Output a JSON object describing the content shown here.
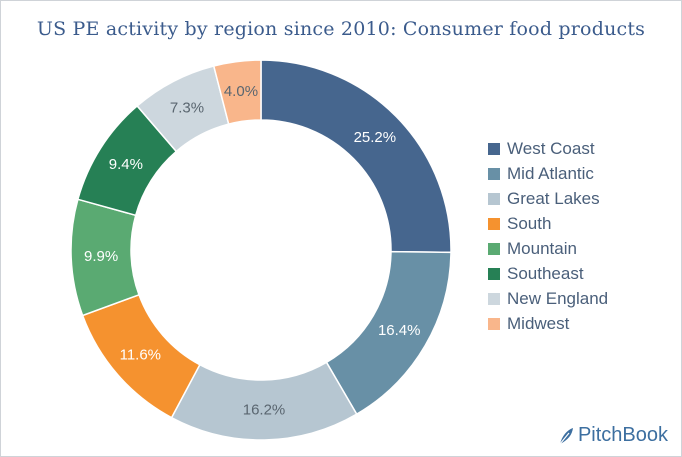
{
  "chart_data": {
    "type": "pie",
    "donut": true,
    "title": "US PE activity by region since 2010: Consumer food products",
    "legend_placement": "right",
    "slices": [
      {
        "label": "West Coast",
        "value": 25.2,
        "display": "25.2%",
        "color": "#46668e"
      },
      {
        "label": "Mid Atlantic",
        "value": 16.4,
        "display": "16.4%",
        "color": "#6890a6"
      },
      {
        "label": "Great Lakes",
        "value": 16.2,
        "display": "16.2%",
        "color": "#b6c6d1"
      },
      {
        "label": "South",
        "value": 11.6,
        "display": "11.6%",
        "color": "#f5922f"
      },
      {
        "label": "Mountain",
        "value": 9.9,
        "display": "9.9%",
        "color": "#5aaa72"
      },
      {
        "label": "Southeast",
        "value": 9.4,
        "display": "9.4%",
        "color": "#268055"
      },
      {
        "label": "New England",
        "value": 7.3,
        "display": "7.3%",
        "color": "#cdd7de"
      },
      {
        "label": "Midwest",
        "value": 4.0,
        "display": "4.0%",
        "color": "#f9b68b"
      }
    ]
  },
  "brand": {
    "name": "PitchBook"
  }
}
